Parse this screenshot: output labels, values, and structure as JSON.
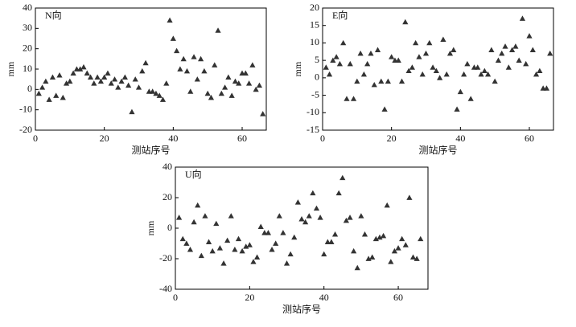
{
  "chart_data": [
    {
      "type": "scatter",
      "label": "N向",
      "xlabel": "测站序号",
      "ylabel": "mm",
      "color": "#333333",
      "xlim": [
        0,
        67
      ],
      "ylim": [
        -20,
        40
      ],
      "xticks": [
        0,
        20,
        40,
        60
      ],
      "yticks": [
        -20,
        -10,
        0,
        10,
        20,
        30,
        40
      ],
      "x": [
        1,
        2,
        3,
        4,
        5,
        6,
        7,
        8,
        9,
        10,
        11,
        12,
        13,
        14,
        15,
        16,
        17,
        18,
        19,
        20,
        21,
        22,
        23,
        24,
        25,
        26,
        27,
        28,
        29,
        30,
        31,
        32,
        33,
        34,
        35,
        36,
        37,
        38,
        39,
        40,
        41,
        42,
        43,
        44,
        45,
        46,
        47,
        48,
        49,
        50,
        51,
        52,
        53,
        54,
        55,
        56,
        57,
        58,
        59,
        60,
        61,
        62,
        63,
        64,
        65,
        66
      ],
      "values": [
        -2,
        1,
        4,
        -5,
        6,
        -3,
        7,
        -4,
        3,
        4,
        8,
        10,
        10,
        11,
        8,
        6,
        3,
        6,
        4,
        6,
        8,
        3,
        5,
        1,
        4,
        6,
        2,
        -11,
        5,
        1,
        9,
        13,
        -1,
        -1,
        -2,
        -3,
        -5,
        3,
        34,
        25,
        19,
        10,
        15,
        9,
        -1,
        16,
        5,
        15,
        9,
        -2,
        -4,
        12,
        29,
        -2,
        1,
        6,
        -3,
        4,
        3,
        8,
        8,
        3,
        12,
        0,
        2,
        -12
      ]
    },
    {
      "type": "scatter",
      "label": "E向",
      "xlabel": "测站序号",
      "ylabel": "mm",
      "color": "#333333",
      "xlim": [
        0,
        67
      ],
      "ylim": [
        -15,
        20
      ],
      "xticks": [
        0,
        20,
        40,
        60
      ],
      "yticks": [
        -15,
        -10,
        -5,
        0,
        5,
        10,
        15,
        20
      ],
      "x": [
        1,
        2,
        3,
        4,
        5,
        6,
        7,
        8,
        9,
        10,
        11,
        12,
        13,
        14,
        15,
        16,
        17,
        18,
        19,
        20,
        21,
        22,
        23,
        24,
        25,
        26,
        27,
        28,
        29,
        30,
        31,
        32,
        33,
        34,
        35,
        36,
        37,
        38,
        39,
        40,
        41,
        42,
        43,
        44,
        45,
        46,
        47,
        48,
        49,
        50,
        51,
        52,
        53,
        54,
        55,
        56,
        57,
        58,
        59,
        60,
        61,
        62,
        63,
        64,
        65,
        66
      ],
      "values": [
        3,
        1,
        5,
        6,
        4,
        10,
        -6,
        4,
        -6,
        -1,
        7,
        1,
        4,
        7,
        -2,
        8,
        -1,
        -9,
        -1,
        6,
        5,
        5,
        -1,
        16,
        2,
        3,
        10,
        6,
        1,
        7,
        10,
        3,
        2,
        0,
        11,
        1,
        7,
        8,
        -9,
        -4,
        1,
        4,
        -6,
        3,
        3,
        1,
        2,
        1,
        8,
        -1,
        5,
        7,
        9,
        3,
        8,
        9,
        5,
        17,
        4,
        12,
        8,
        1,
        2,
        -3,
        -3,
        7
      ]
    },
    {
      "type": "scatter",
      "label": "U向",
      "xlabel": "测站序号",
      "ylabel": "mm",
      "color": "#333333",
      "xlim": [
        0,
        68
      ],
      "ylim": [
        -40,
        40
      ],
      "xticks": [
        0,
        20,
        40,
        60
      ],
      "yticks": [
        -40,
        -20,
        0,
        20,
        40
      ],
      "x": [
        1,
        2,
        3,
        4,
        5,
        6,
        7,
        8,
        9,
        10,
        11,
        12,
        13,
        14,
        15,
        16,
        17,
        18,
        19,
        20,
        21,
        22,
        23,
        24,
        25,
        26,
        27,
        28,
        29,
        30,
        31,
        32,
        33,
        34,
        35,
        36,
        37,
        38,
        39,
        40,
        41,
        42,
        43,
        44,
        45,
        46,
        47,
        48,
        49,
        50,
        51,
        52,
        53,
        54,
        55,
        56,
        57,
        58,
        59,
        60,
        61,
        62,
        63,
        64,
        65,
        66
      ],
      "values": [
        7,
        -7,
        -10,
        -14,
        4,
        15,
        -18,
        8,
        -9,
        -15,
        3,
        -13,
        -23,
        -8,
        8,
        -14,
        -7,
        -15,
        -12,
        -11,
        -22,
        -19,
        1,
        -3,
        -3,
        -14,
        -10,
        8,
        -3,
        -23,
        -17,
        -6,
        17,
        6,
        4,
        8,
        23,
        13,
        7,
        -17,
        -9,
        -9,
        -4,
        23,
        33,
        5,
        7,
        -15,
        -26,
        8,
        -4,
        -20,
        -19,
        -7,
        -6,
        -5,
        15,
        -22,
        -15,
        -13,
        -7,
        -11,
        20,
        -19,
        -20,
        -7
      ]
    }
  ]
}
